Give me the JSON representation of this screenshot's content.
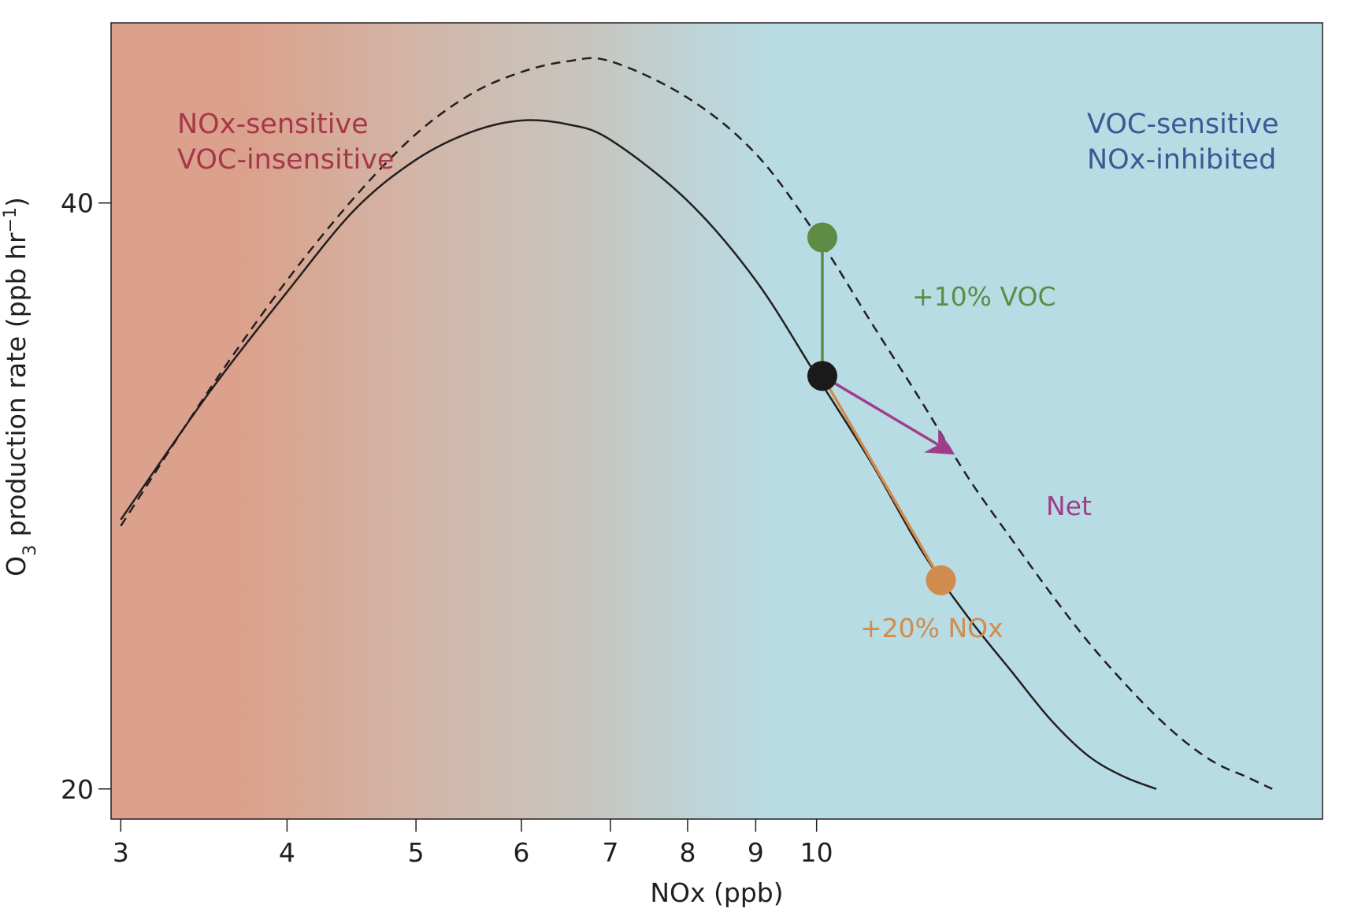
{
  "chart_data": {
    "type": "line",
    "xlabel": "NOx (ppb)",
    "ylabel": "O3 production rate (ppb hr−1)",
    "x_scale": "log",
    "y_scale": "log",
    "xlim": [
      2.95,
      24
    ],
    "ylim": [
      19.3,
      49.5
    ],
    "x_ticks": [
      {
        "value": 3,
        "label": "3"
      },
      {
        "value": 4,
        "label": "4"
      },
      {
        "value": 5,
        "label": "5"
      },
      {
        "value": 6,
        "label": "6"
      },
      {
        "value": 7,
        "label": "7"
      },
      {
        "value": 8,
        "label": "8"
      },
      {
        "value": 9,
        "label": "9"
      },
      {
        "value": 10,
        "label": "10"
      }
    ],
    "y_ticks": [
      {
        "value": 20,
        "label": "20"
      },
      {
        "value": 40,
        "label": "40"
      }
    ],
    "grid": false,
    "series": [
      {
        "style": "solid",
        "color": "#231f20",
        "x": [
          3.0,
          3.5,
          4.0,
          4.5,
          5.0,
          5.5,
          6.0,
          6.5,
          7.0,
          8.0,
          9.0,
          10.0,
          11.0,
          12.0,
          13.0,
          14.0,
          15.0,
          16.0,
          17.0,
          18.0
        ],
        "y": [
          27.5,
          32.0,
          36.0,
          39.7,
          42.1,
          43.5,
          44.1,
          43.9,
          43.1,
          40.1,
          36.5,
          32.6,
          29.4,
          26.5,
          24.5,
          23.0,
          21.7,
          20.8,
          20.3,
          20.0
        ]
      },
      {
        "style": "dashed",
        "color": "#231f20",
        "x": [
          3.0,
          3.5,
          4.0,
          4.5,
          5.0,
          5.5,
          6.0,
          6.5,
          7.0,
          8.0,
          9.0,
          10.0,
          11.0,
          12.0,
          13.0,
          14.0,
          15.0,
          16.0,
          17.0,
          18.0,
          19.0,
          20.0,
          21.0,
          22.0
        ],
        "y": [
          27.3,
          32.1,
          36.5,
          40.3,
          43.4,
          45.5,
          46.7,
          47.3,
          47.3,
          45.3,
          42.4,
          38.5,
          34.7,
          31.6,
          28.9,
          26.9,
          25.2,
          23.8,
          22.7,
          21.8,
          21.1,
          20.6,
          20.3,
          20.0
        ]
      }
    ],
    "points": [
      {
        "name": "start",
        "x": 10.1,
        "y": 32.6,
        "color": "#1a1a1a"
      },
      {
        "name": "voc",
        "x": 10.1,
        "y": 38.4,
        "color": "#5f8b45"
      },
      {
        "name": "nox",
        "x": 12.4,
        "y": 25.6,
        "color": "#d18b4d"
      }
    ],
    "arrow": {
      "x0": 10.1,
      "y0": 32.6,
      "x1": 12.6,
      "y1": 29.8,
      "color": "#a03d8a"
    },
    "annotations": {
      "left_region_line1": "NOx-sensitive",
      "left_region_line2": "VOC-insensitive",
      "right_region_line1": "VOC-sensitive",
      "right_region_line2": "NOx-inhibited",
      "voc_label": "+10% VOC",
      "nox_label": "+20% NOx",
      "net_label": "Net"
    },
    "colors": {
      "nox_sensitive_region": "#dba18c",
      "transition_region": "#c6c6c0",
      "voc_sensitive_region": "#b8dce4",
      "left_text": "#a8374a",
      "right_text": "#3a5a94",
      "voc_label": "#5f8b45",
      "nox_label": "#d18b4d",
      "net_label": "#a03d8a"
    }
  }
}
